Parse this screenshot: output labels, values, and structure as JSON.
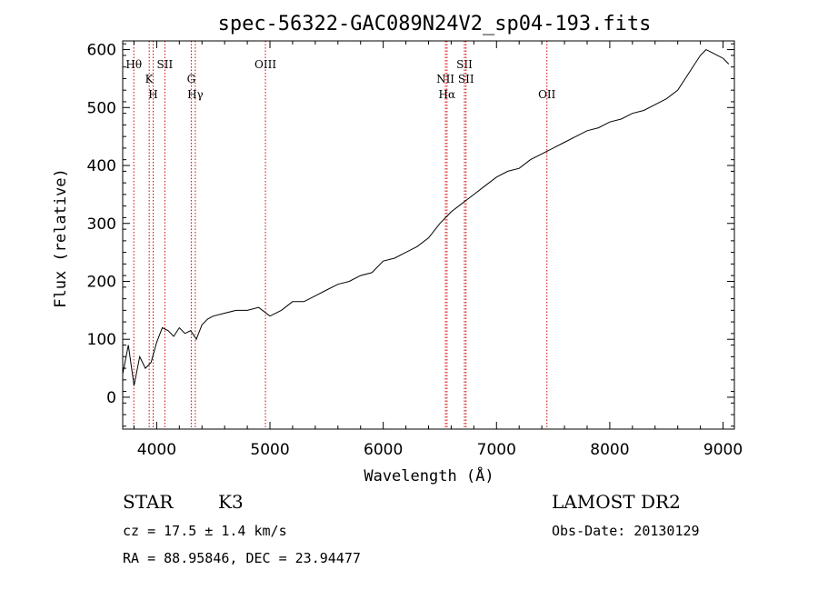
{
  "chart_data": {
    "type": "line",
    "title": "spec-56322-GAC089N24V2_sp04-193.fits",
    "xlabel": "Wavelength (Å)",
    "ylabel": "Flux (relative)",
    "xlim": [
      3700,
      9100
    ],
    "ylim": [
      -55,
      615
    ],
    "x_ticks": [
      4000,
      5000,
      6000,
      7000,
      8000,
      9000
    ],
    "y_ticks": [
      0,
      100,
      200,
      300,
      400,
      500,
      600
    ],
    "grid": false,
    "line_color": "#000000",
    "marker_color": "#cc0000",
    "series": [
      {
        "x": [
          3700,
          3750,
          3800,
          3850,
          3900,
          3950,
          4000,
          4050,
          4100,
          4150,
          4200,
          4250,
          4300,
          4350,
          4400,
          4450,
          4500,
          4600,
          4700,
          4800,
          4900,
          5000,
          5100,
          5200,
          5300,
          5400,
          5500,
          5600,
          5700,
          5800,
          5900,
          6000,
          6100,
          6200,
          6300,
          6400,
          6500,
          6600,
          6700,
          6800,
          6900,
          7000,
          7100,
          7200,
          7300,
          7400,
          7500,
          7600,
          7700,
          7800,
          7900,
          8000,
          8100,
          8200,
          8300,
          8400,
          8500,
          8600,
          8700,
          8800,
          8850,
          8900,
          8950,
          9000,
          9050
        ],
        "y": [
          40,
          90,
          20,
          70,
          50,
          60,
          95,
          120,
          115,
          105,
          120,
          110,
          115,
          100,
          125,
          135,
          140,
          145,
          150,
          150,
          155,
          140,
          150,
          165,
          165,
          175,
          185,
          195,
          200,
          210,
          215,
          235,
          240,
          250,
          260,
          275,
          300,
          320,
          335,
          350,
          365,
          380,
          390,
          395,
          410,
          420,
          430,
          440,
          450,
          460,
          465,
          475,
          480,
          490,
          495,
          505,
          515,
          530,
          560,
          590,
          600,
          595,
          590,
          585,
          575
        ]
      }
    ],
    "line_markers": [
      {
        "label": "Hθ",
        "wavelength": 3798
      },
      {
        "label": "K",
        "wavelength": 3934
      },
      {
        "label": "H",
        "wavelength": 3969
      },
      {
        "label": "SII",
        "wavelength": 4072
      },
      {
        "label": "G",
        "wavelength": 4305
      },
      {
        "label": "Hγ",
        "wavelength": 4341
      },
      {
        "label": "OIII",
        "wavelength": 4960
      },
      {
        "label": "NII",
        "wavelength": 6549
      },
      {
        "label": "Hα",
        "wavelength": 6563
      },
      {
        "label": "SII",
        "wavelength": 6717
      },
      {
        "label": "SII",
        "wavelength": 6731
      },
      {
        "label": "OII",
        "wavelength": 7445
      }
    ]
  },
  "info": {
    "object_class": "STAR",
    "subclass": "K3",
    "survey": "LAMOST DR2",
    "redshift": "cz = 17.5 ± 1.4 km/s",
    "obs_date": "Obs-Date: 20130129",
    "coords": "RA =  88.95846, DEC =  23.94477"
  }
}
